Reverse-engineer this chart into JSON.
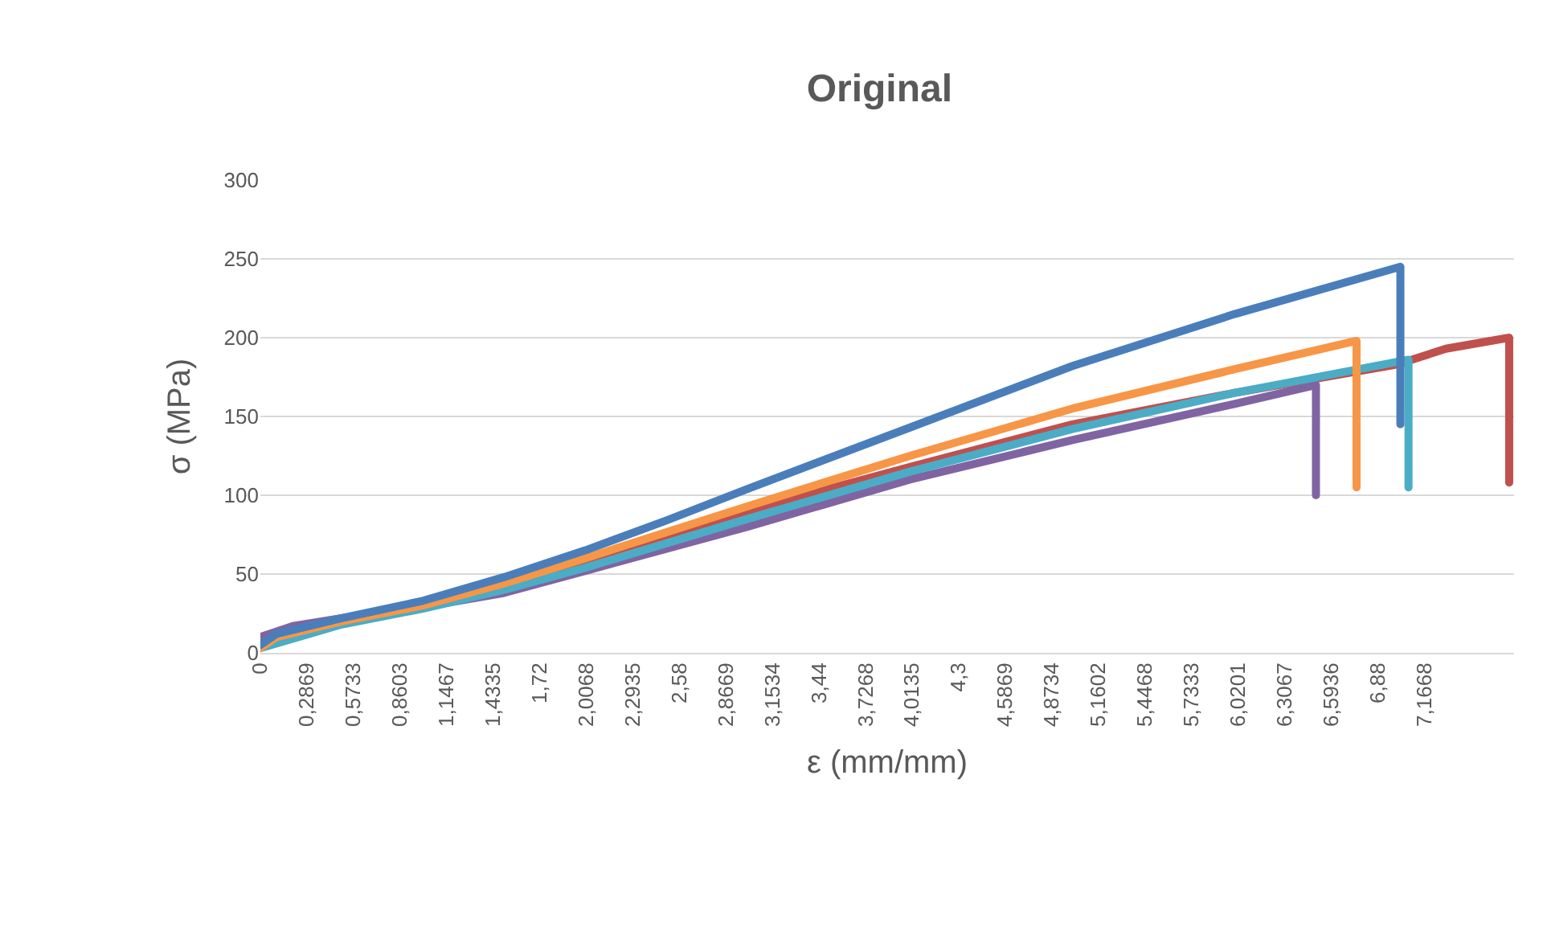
{
  "chart_data": {
    "type": "line",
    "title": "Original",
    "xlabel": "ε (mm/mm)",
    "ylabel": "σ (MPa)",
    "xlim": [
      0,
      7.72
    ],
    "ylim": [
      0,
      300
    ],
    "xticks": [
      0,
      {
        "value": 0.2869,
        "label": "0,2869"
      },
      {
        "value": 0.5733,
        "label": "0,5733"
      },
      {
        "value": 0.8603,
        "label": "0,8603"
      },
      {
        "value": 1.1467,
        "label": "1,1467"
      },
      {
        "value": 1.4335,
        "label": "1,4335"
      },
      {
        "value": 1.72,
        "label": "1,72"
      },
      {
        "value": 2.0068,
        "label": "2,0068"
      },
      {
        "value": 2.2935,
        "label": "2,2935"
      },
      {
        "value": 2.58,
        "label": "2,58"
      },
      {
        "value": 2.8669,
        "label": "2,8669"
      },
      {
        "value": 3.1534,
        "label": "3,1534"
      },
      {
        "value": 3.44,
        "label": "3,44"
      },
      {
        "value": 3.7268,
        "label": "3,7268"
      },
      {
        "value": 4.0135,
        "label": "4,0135"
      },
      {
        "value": 4.3,
        "label": "4,3"
      },
      {
        "value": 4.5869,
        "label": "4,5869"
      },
      {
        "value": 4.8734,
        "label": "4,8734"
      },
      {
        "value": 5.1602,
        "label": "5,1602"
      },
      {
        "value": 5.4468,
        "label": "5,4468"
      },
      {
        "value": 5.7333,
        "label": "5,7333"
      },
      {
        "value": 6.0201,
        "label": "6,0201"
      },
      {
        "value": 6.3067,
        "label": "6,3067"
      },
      {
        "value": 6.5936,
        "label": "6,5936"
      },
      {
        "value": 6.88,
        "label": "6,88"
      },
      {
        "value": 7.1668,
        "label": "7,1668"
      }
    ],
    "yticks": [
      0,
      50,
      100,
      150,
      200,
      250,
      300
    ],
    "grid": "y",
    "marker": "none",
    "line_style": "solid",
    "series": [
      {
        "color": "#c0504d",
        "x": [
          0,
          0.5,
          1,
          1.5,
          2,
          3,
          4,
          5,
          6,
          7.0,
          7.3,
          7.69,
          7.69
        ],
        "values": [
          5,
          19,
          30,
          43,
          58,
          90,
          118,
          145,
          165,
          183,
          193,
          200,
          108
        ]
      },
      {
        "color": "#8064a2",
        "x": [
          0,
          0.2,
          0.5,
          1,
          1.5,
          2,
          3,
          4,
          5,
          6,
          6.5,
          6.5
        ],
        "values": [
          10,
          17,
          22,
          29,
          38,
          52,
          80,
          110,
          135,
          158,
          170,
          100
        ]
      },
      {
        "color": "#4bacc6",
        "x": [
          0,
          0.5,
          1,
          1.5,
          2,
          3,
          4,
          5,
          6,
          7.07,
          7.07
        ],
        "values": [
          3,
          18,
          28,
          40,
          54,
          85,
          115,
          142,
          165,
          186,
          105
        ]
      },
      {
        "color": "#f79646",
        "x": [
          0,
          0.1,
          0.5,
          1,
          1.5,
          2,
          3,
          4,
          5,
          6,
          6.75,
          6.75
        ],
        "values": [
          3,
          10,
          20,
          30,
          44,
          60,
          93,
          125,
          155,
          180,
          198,
          105
        ]
      },
      {
        "color": "#4a7ebb",
        "x": [
          0,
          0.1,
          0.5,
          1,
          1.5,
          2,
          2.5,
          3,
          4,
          5,
          6,
          7.02,
          7.02
        ],
        "values": [
          5,
          12,
          22,
          33,
          48,
          65,
          84,
          104,
          143,
          182,
          215,
          245,
          145
        ]
      }
    ]
  }
}
